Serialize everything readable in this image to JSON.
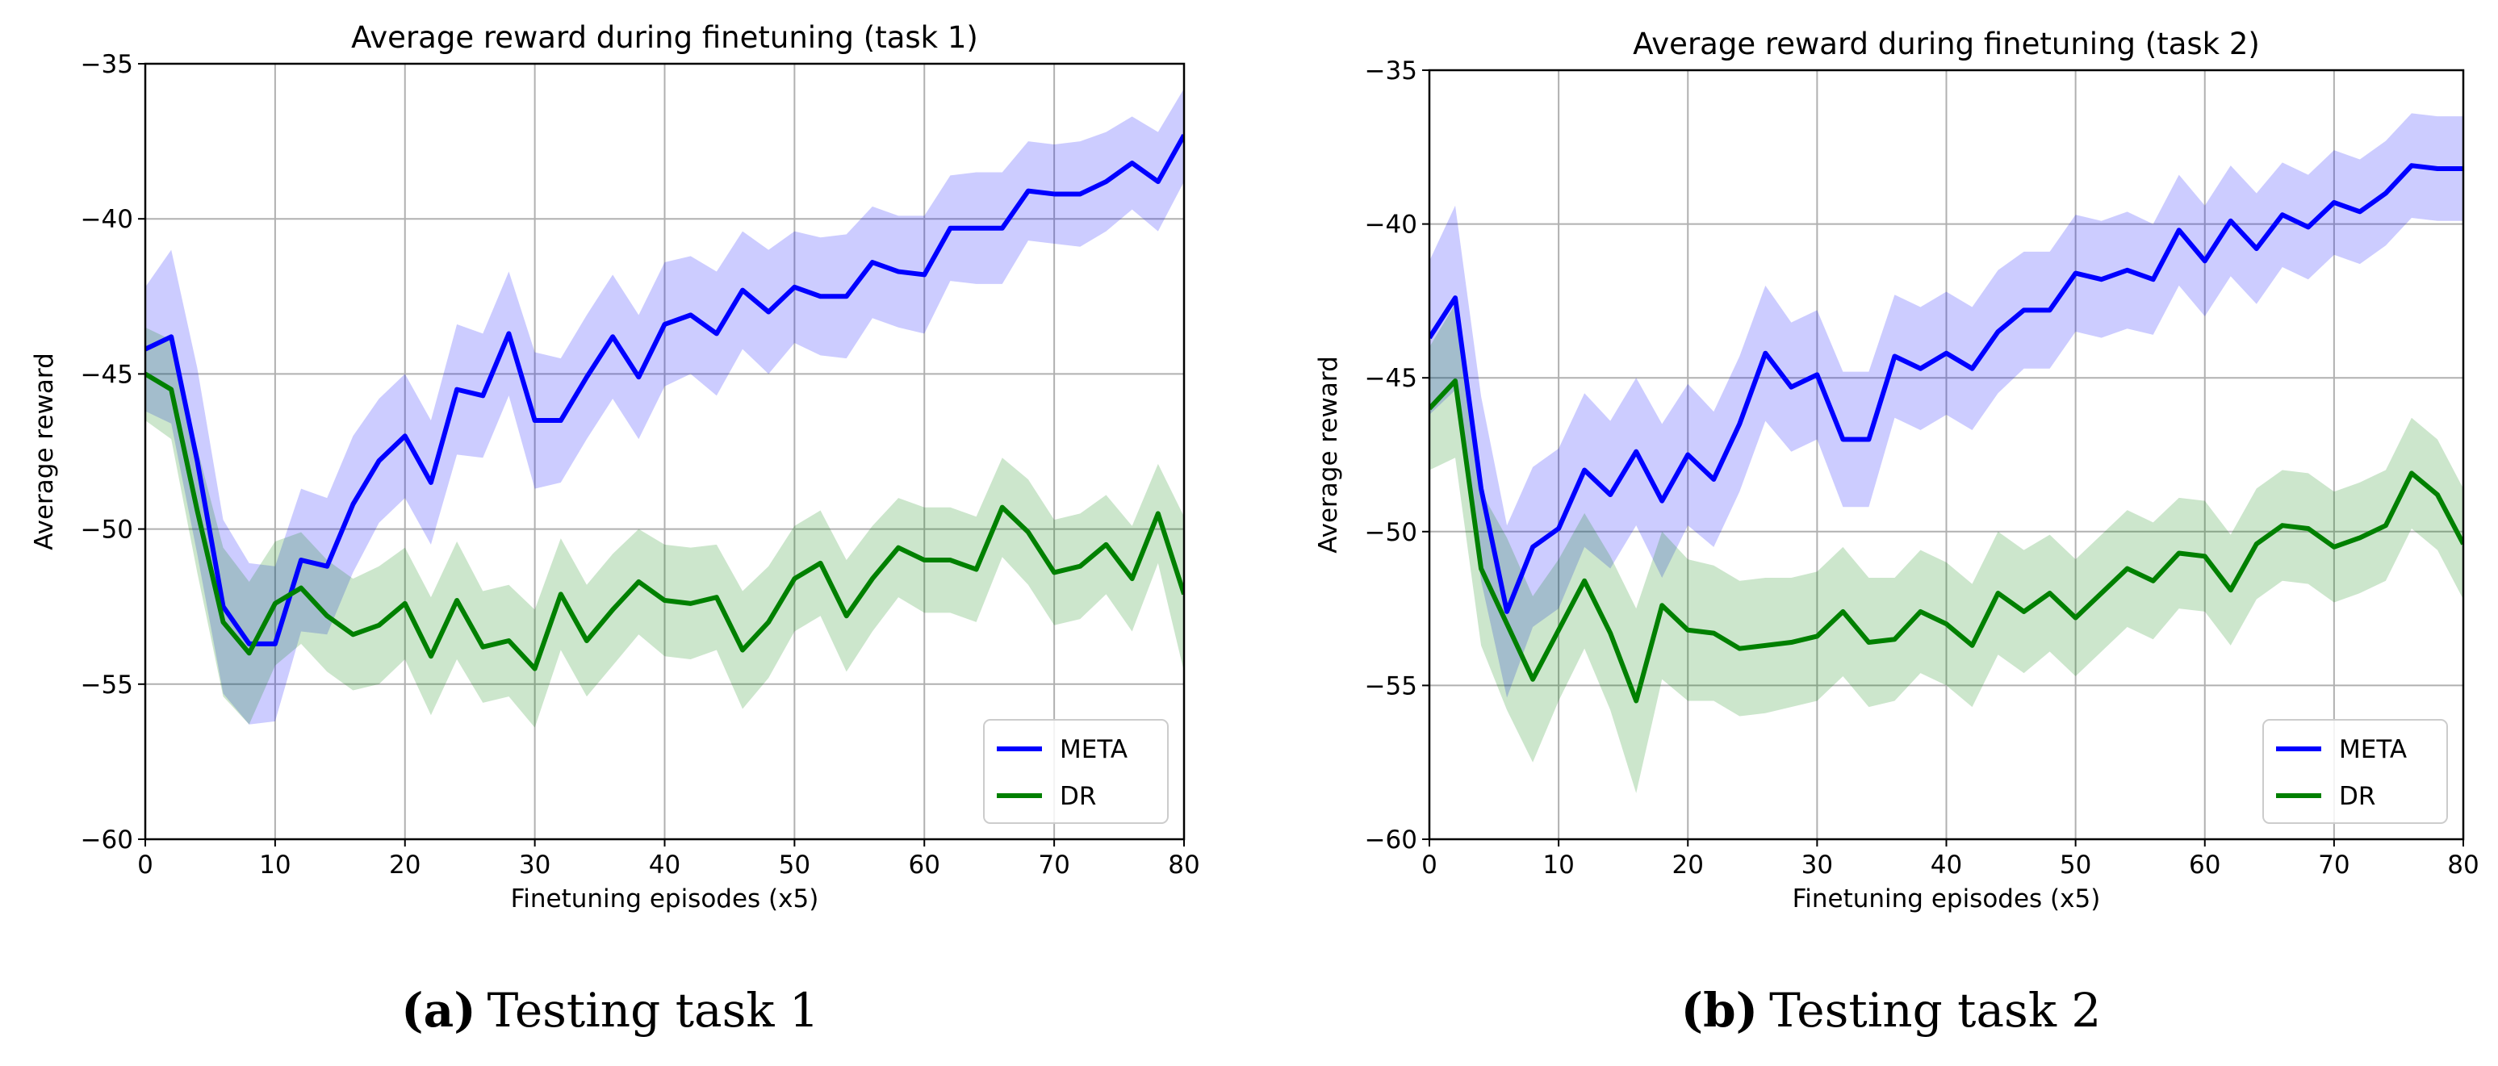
{
  "chart_data": [
    {
      "type": "line",
      "title": "Average reward during finetuning (task 1)",
      "xlabel": "Finetuning episodes (x5)",
      "ylabel": "Average reward",
      "caption_label": "(a)",
      "caption": "Testing task 1",
      "x": [
        0,
        2,
        4,
        6,
        8,
        10,
        12,
        14,
        16,
        18,
        20,
        22,
        24,
        26,
        28,
        30,
        32,
        34,
        36,
        38,
        40,
        42,
        44,
        46,
        48,
        50,
        52,
        54,
        56,
        58,
        60,
        62,
        64,
        66,
        68,
        70,
        72,
        74,
        76,
        78,
        80
      ],
      "series": [
        {
          "name": "META",
          "color": "#0000ff",
          "values": [
            -44.2,
            -43.8,
            -47.8,
            -52.5,
            -53.7,
            -53.7,
            -51,
            -51.2,
            -49.2,
            -47.8,
            -47,
            -48.5,
            -45.5,
            -45.7,
            -43.7,
            -46.5,
            -46.5,
            -45.1,
            -43.8,
            -45.1,
            -43.4,
            -43.1,
            -43.7,
            -42.3,
            -43,
            -42.2,
            -42.5,
            -42.5,
            -41.4,
            -41.7,
            -41.8,
            -40.3,
            -40.3,
            -40.3,
            -39.1,
            -39.2,
            -39.2,
            -38.8,
            -38.2,
            -38.8,
            -37.3
          ],
          "error": [
            2,
            2.8,
            3,
            2.8,
            2.6,
            2.5,
            2.3,
            2.2,
            2.2,
            2,
            2,
            2,
            2.1,
            2,
            2,
            2.2,
            2,
            2,
            2,
            2,
            2,
            1.9,
            2,
            1.9,
            2,
            1.8,
            1.9,
            2,
            1.8,
            1.8,
            1.9,
            1.7,
            1.8,
            1.8,
            1.6,
            1.6,
            1.7,
            1.6,
            1.5,
            1.6,
            1.5
          ]
        },
        {
          "name": "DR",
          "color": "#008000",
          "values": [
            -45,
            -45.5,
            -49.4,
            -53,
            -54,
            -52.4,
            -51.9,
            -52.8,
            -53.4,
            -53.1,
            -52.4,
            -54.1,
            -52.3,
            -53.8,
            -53.6,
            -54.5,
            -52.1,
            -53.6,
            -52.6,
            -51.7,
            -52.3,
            -52.4,
            -52.2,
            -53.9,
            -53,
            -51.6,
            -51.1,
            -52.8,
            -51.6,
            -50.6,
            -51,
            -51,
            -51.3,
            -49.3,
            -50.1,
            -51.4,
            -51.2,
            -50.5,
            -51.6,
            -49.5,
            -52.1
          ],
          "error": [
            1.5,
            1.6,
            2,
            2.4,
            2.3,
            2,
            1.8,
            1.8,
            1.8,
            1.9,
            1.8,
            1.9,
            1.9,
            1.8,
            1.8,
            1.9,
            1.8,
            1.8,
            1.8,
            1.7,
            1.8,
            1.8,
            1.7,
            1.9,
            1.8,
            1.7,
            1.7,
            1.8,
            1.7,
            1.6,
            1.7,
            1.7,
            1.7,
            1.6,
            1.7,
            1.7,
            1.7,
            1.6,
            1.7,
            1.6,
            2.5
          ]
        }
      ],
      "xlim": [
        0,
        80
      ],
      "ylim": [
        -60,
        -35
      ],
      "xticks": [
        0,
        10,
        20,
        30,
        40,
        50,
        60,
        70,
        80
      ],
      "yticks": [
        {
          "value": -60,
          "label": "−60"
        },
        {
          "value": -55,
          "label": "−55"
        },
        {
          "value": -50,
          "label": "−50"
        },
        {
          "value": -45,
          "label": "−45"
        },
        {
          "value": -40,
          "label": "−40"
        },
        {
          "value": -35,
          "label": "−35"
        }
      ],
      "grid": true,
      "legend": "lower right"
    },
    {
      "type": "line",
      "title": "Average reward during finetuning (task 2)",
      "xlabel": "Finetuning episodes (x5)",
      "ylabel": "Average reward",
      "caption_label": "(b)",
      "caption": "Testing task 2",
      "x": [
        0,
        2,
        4,
        6,
        8,
        10,
        12,
        14,
        16,
        18,
        20,
        22,
        24,
        26,
        28,
        30,
        32,
        34,
        36,
        38,
        40,
        42,
        44,
        46,
        48,
        50,
        52,
        54,
        56,
        58,
        60,
        62,
        64,
        66,
        68,
        70,
        72,
        74,
        76,
        78,
        80
      ],
      "series": [
        {
          "name": "META",
          "color": "#0000ff",
          "values": [
            -43.7,
            -42.4,
            -48.6,
            -52.6,
            -50.5,
            -49.9,
            -48,
            -48.8,
            -47.4,
            -49,
            -47.5,
            -48.3,
            -46.5,
            -44.2,
            -45.3,
            -44.9,
            -47,
            -47,
            -44.3,
            -44.7,
            -44.2,
            -44.7,
            -43.5,
            -42.8,
            -42.8,
            -41.6,
            -41.8,
            -41.5,
            -41.8,
            -40.2,
            -41.2,
            -39.9,
            -40.8,
            -39.7,
            -40.1,
            -39.3,
            -39.6,
            -39,
            -38.1,
            -38.2,
            -38.2
          ],
          "error": [
            2.5,
            3,
            3,
            2.8,
            2.6,
            2.6,
            2.5,
            2.4,
            2.4,
            2.5,
            2.3,
            2.2,
            2.2,
            2.2,
            2.1,
            2.1,
            2.2,
            2.2,
            2,
            2,
            2,
            2,
            2,
            1.9,
            1.9,
            1.9,
            1.9,
            1.9,
            1.8,
            1.8,
            1.8,
            1.8,
            1.8,
            1.7,
            1.7,
            1.7,
            1.7,
            1.7,
            1.7,
            1.7,
            1.7
          ]
        },
        {
          "name": "DR",
          "color": "#008000",
          "values": [
            -46,
            -45.1,
            -51.2,
            -53,
            -54.8,
            -53.2,
            -51.6,
            -53.3,
            -55.5,
            -52.4,
            -53.2,
            -53.3,
            -53.8,
            -53.7,
            -53.6,
            -53.4,
            -52.6,
            -53.6,
            -53.5,
            -52.6,
            -53,
            -53.7,
            -52,
            -52.6,
            -52,
            -52.8,
            -52,
            -51.2,
            -51.6,
            -50.7,
            -50.8,
            -51.9,
            -50.4,
            -49.8,
            -49.9,
            -50.5,
            -50.2,
            -49.8,
            -48.1,
            -48.8,
            -50.4
          ],
          "error": [
            2,
            2.5,
            2.5,
            2.8,
            2.7,
            2.3,
            2.2,
            2.5,
            3,
            2.4,
            2.3,
            2.2,
            2.2,
            2.2,
            2.1,
            2.1,
            2.1,
            2.1,
            2,
            2,
            2,
            2,
            2,
            2,
            1.9,
            1.9,
            1.9,
            1.9,
            1.9,
            1.8,
            1.8,
            1.8,
            1.8,
            1.8,
            1.8,
            1.8,
            1.8,
            1.8,
            1.8,
            1.8,
            1.8
          ]
        }
      ],
      "xlim": [
        0,
        80
      ],
      "ylim": [
        -60,
        -35
      ],
      "xticks": [
        0,
        10,
        20,
        30,
        40,
        50,
        60,
        70,
        80
      ],
      "yticks": [
        {
          "value": -60,
          "label": "−60"
        },
        {
          "value": -55,
          "label": "−55"
        },
        {
          "value": -50,
          "label": "−50"
        },
        {
          "value": -45,
          "label": "−45"
        },
        {
          "value": -40,
          "label": "−40"
        },
        {
          "value": -35,
          "label": "−35"
        }
      ],
      "grid": true,
      "legend": "lower right"
    }
  ]
}
